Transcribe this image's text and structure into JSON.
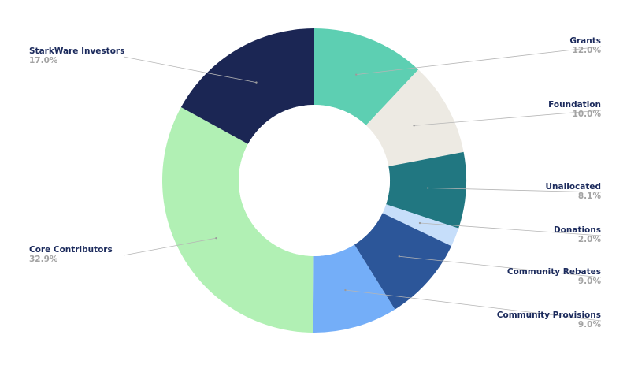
{
  "chart_data": {
    "type": "pie",
    "title": "",
    "labels": [
      "Grants",
      "Foundation",
      "Unallocated",
      "Donations",
      "Community Rebates",
      "Community Provisions",
      "Core Contributors",
      "StarkWare Investors"
    ],
    "values": [
      12.0,
      10.0,
      8.1,
      2.0,
      9.0,
      9.0,
      32.9,
      17.0
    ],
    "value_labels": [
      "12.0%",
      "10.0%",
      "8.1%",
      "2.0%",
      "9.0%",
      "9.0%",
      "32.9%",
      "17.0%"
    ],
    "colors": [
      "#5dcfb2",
      "#edeae3",
      "#217781",
      "#c6defa",
      "#2c5699",
      "#74aef8",
      "#b1f0b4",
      "#1b2654"
    ],
    "start_angle_degrees": 0,
    "direction": "clockwise",
    "style": "donut",
    "legend": "callout labels beside slices"
  }
}
